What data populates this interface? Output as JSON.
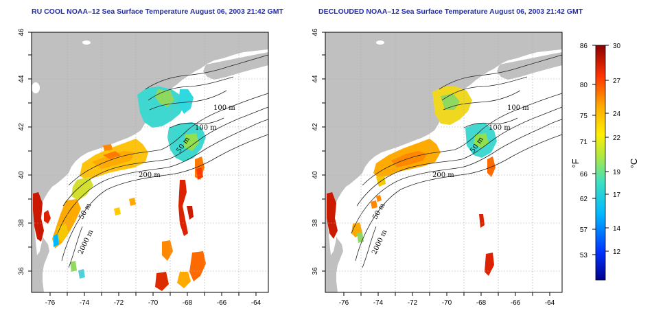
{
  "panels": [
    {
      "title": "RU COOL NOAA–12 Sea Surface Temperature August 06, 2003 21:42 GMT",
      "contour_labels": [
        "100 m",
        "100 m",
        "50 m",
        "200 m",
        "50 m",
        "2000 m"
      ]
    },
    {
      "title": "DECLOUDED NOAA–12 Sea Surface Temperature August 06, 2003 21:42 GMT",
      "contour_labels": [
        "100 m",
        "100 m",
        "50 m",
        "200 m",
        "50 m",
        "2000 m"
      ]
    }
  ],
  "axes": {
    "x_ticks": [
      "-76",
      "-74",
      "-72",
      "-70",
      "-68",
      "-66",
      "-64"
    ],
    "y_ticks": [
      "36",
      "38",
      "40",
      "42",
      "44",
      "46"
    ]
  },
  "colorbar": {
    "fahrenheit_label": "°F",
    "celsius_label": "°C",
    "fahrenheit_ticks": [
      "86",
      "80",
      "75",
      "71",
      "66",
      "62",
      "57",
      "53"
    ],
    "celsius_ticks": [
      "30",
      "27",
      "24",
      "22",
      "19",
      "17",
      "14",
      "12"
    ]
  },
  "colors": {
    "land": "#c0c0c0",
    "title": "#1f2bb0",
    "cool": "#00008b",
    "warm": "#8b0000"
  }
}
